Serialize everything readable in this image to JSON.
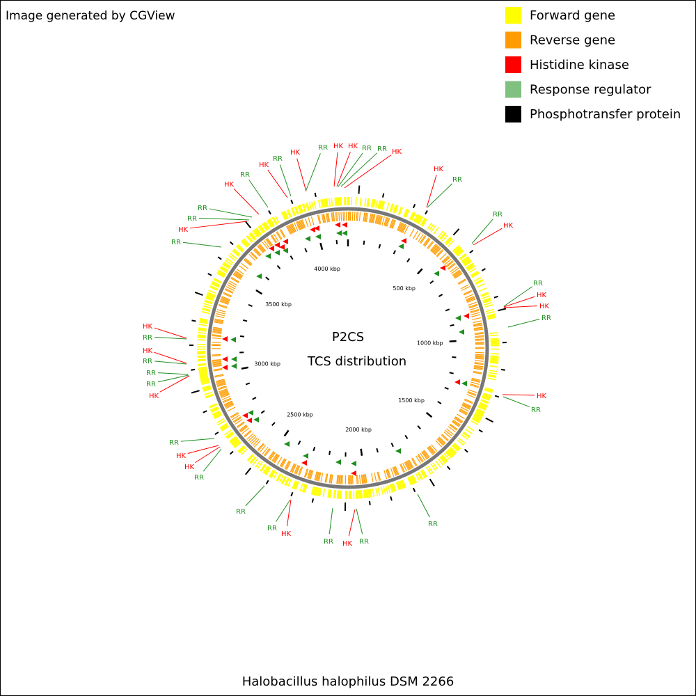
{
  "header": {
    "note": "Image generated by CGView"
  },
  "legend": [
    {
      "label": "Forward gene",
      "color": "#ffff00"
    },
    {
      "label": "Reverse gene",
      "color": "#ff9d00"
    },
    {
      "label": "Histidine kinase",
      "color": "#ff0000"
    },
    {
      "label": "Response regulator",
      "color": "#80c080"
    },
    {
      "label": "Phosphotransfer protein",
      "color": "#000000"
    }
  ],
  "center": {
    "title": "P2CS",
    "subtitle": "TCS distribution"
  },
  "scale_labels": [
    "500 kbp",
    "1000 kbp",
    "1500 kbp",
    "2000 kbp",
    "2500 kbp",
    "3000 kbp",
    "3500 kbp",
    "4000 kbp"
  ],
  "feature_labels": [
    "RR",
    "HK",
    "RR",
    "RR",
    "HK",
    "RR",
    "HK",
    "RR",
    "HK",
    "RR",
    "HK",
    "HK",
    "RR",
    "RR",
    "HK",
    "HK",
    "RR",
    "RR",
    "HK",
    "RR",
    "HK",
    "HK",
    "RR",
    "HK",
    "RR",
    "RR",
    "RR",
    "HK",
    "RR",
    "HK",
    "RR",
    "RR",
    "RR",
    "HK",
    "HK",
    "RR",
    "HK",
    "RR",
    "RR",
    "RR",
    "HK",
    "RR",
    "HK"
  ],
  "footer": {
    "title": "Halobacillus halophilus DSM 2266"
  }
}
